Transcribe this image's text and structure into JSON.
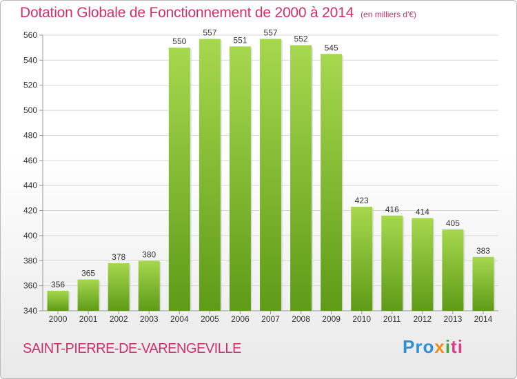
{
  "header": {
    "title": "Dotation Globale de Fonctionnement de 2000 à 2014",
    "unit": "(en milliers d'€)"
  },
  "footer": {
    "city": "SAINT-PIERRE-DE-VARENGEVILLE",
    "logo_parts": [
      "Pro",
      "x",
      "i",
      "ti"
    ]
  },
  "colors": {
    "title": "#d0306a",
    "bar_top": "#a6d84e",
    "bar_bottom": "#5e9b17",
    "grid": "#d8d8d8"
  },
  "chart_data": {
    "type": "bar",
    "title": "Dotation Globale de Fonctionnement de 2000 à 2014",
    "xlabel": "",
    "ylabel": "",
    "categories": [
      "2000",
      "2001",
      "2002",
      "2003",
      "2004",
      "2005",
      "2006",
      "2007",
      "2008",
      "2009",
      "2010",
      "2011",
      "2012",
      "2013",
      "2014"
    ],
    "values": [
      356,
      365,
      378,
      380,
      550,
      557,
      551,
      557,
      552,
      545,
      423,
      416,
      414,
      405,
      383
    ],
    "ylim": [
      340,
      560
    ],
    "yticks": [
      340,
      360,
      380,
      400,
      420,
      440,
      460,
      480,
      500,
      520,
      540,
      560
    ],
    "grid": true,
    "legend": "none"
  }
}
